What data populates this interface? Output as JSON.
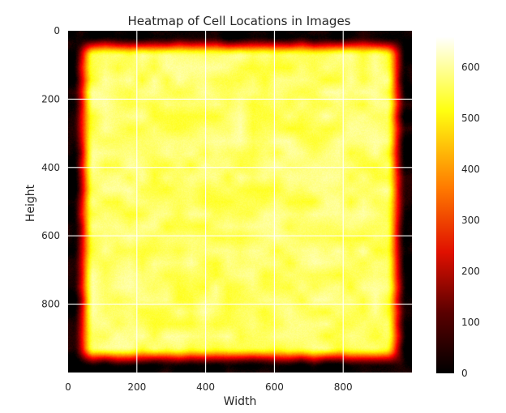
{
  "chart_data": {
    "type": "heatmap",
    "title": "Heatmap of Cell Locations in Images",
    "xlabel": "Width",
    "ylabel": "Height",
    "xlim": [
      0,
      1000
    ],
    "ylim": [
      1000,
      0
    ],
    "xticks": [
      0,
      200,
      400,
      600,
      800
    ],
    "yticks": [
      0,
      200,
      400,
      600,
      800
    ],
    "grid": true,
    "colormap": "hot",
    "colorbar": {
      "range": [
        0,
        660
      ],
      "ticks": [
        0,
        100,
        200,
        300,
        400,
        500,
        600
      ]
    },
    "description_values": {
      "interior_count_typical": 560,
      "edge_count_min": 0,
      "border_falloff_width_px": 60
    },
    "colors": {
      "cmap_stops": [
        "#000000",
        "#7f0000",
        "#ff0000",
        "#ff8000",
        "#ffff00",
        "#ffffff"
      ]
    }
  }
}
